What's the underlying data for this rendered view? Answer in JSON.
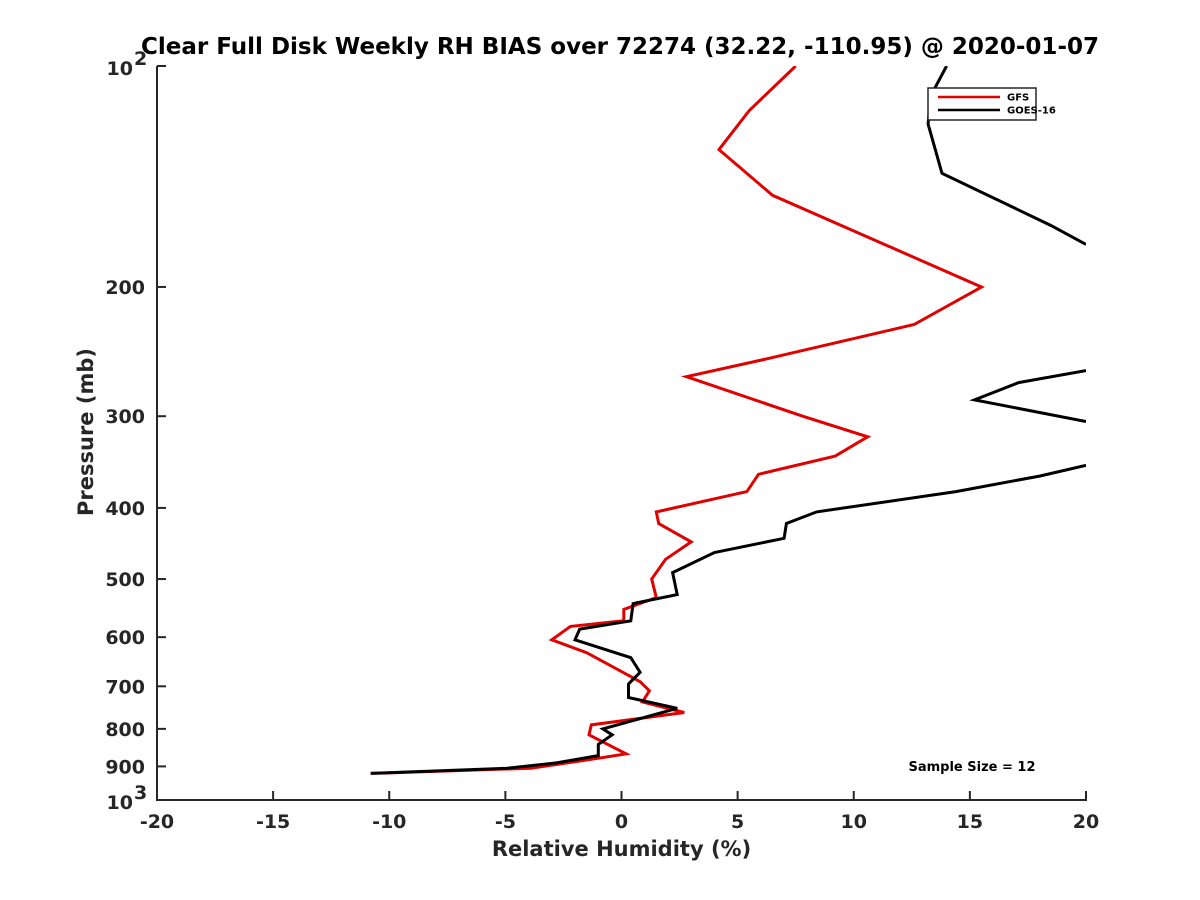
{
  "chart_data": {
    "type": "line",
    "title": "Clear Full Disk Weekly RH BIAS over 72274 (32.22, -110.95) @ 2020-01-07",
    "xlabel": "Relative Humidity (%)",
    "ylabel": "Pressure (mb)",
    "xlim": [
      -20,
      20
    ],
    "ylim": [
      100,
      1000
    ],
    "yscale": "log",
    "y_reversed": true,
    "grid": false,
    "legend_position": "top-right",
    "annotation": "Sample Size = 12",
    "x_ticks": [
      {
        "value": -20,
        "label": "-20"
      },
      {
        "value": -15,
        "label": "-15"
      },
      {
        "value": -10,
        "label": "-10"
      },
      {
        "value": -5,
        "label": "-5"
      },
      {
        "value": 0,
        "label": "0"
      },
      {
        "value": 5,
        "label": "5"
      },
      {
        "value": 10,
        "label": "10"
      },
      {
        "value": 15,
        "label": "15"
      },
      {
        "value": 20,
        "label": "20"
      }
    ],
    "y_ticks": [
      {
        "value": 100,
        "label": "10",
        "exp": "2"
      },
      {
        "value": 200,
        "label": "200",
        "exp": ""
      },
      {
        "value": 300,
        "label": "300",
        "exp": ""
      },
      {
        "value": 400,
        "label": "400",
        "exp": ""
      },
      {
        "value": 500,
        "label": "500",
        "exp": ""
      },
      {
        "value": 600,
        "label": "600",
        "exp": ""
      },
      {
        "value": 700,
        "label": "700",
        "exp": ""
      },
      {
        "value": 800,
        "label": "800",
        "exp": ""
      },
      {
        "value": 900,
        "label": "900",
        "exp": ""
      },
      {
        "value": 1000,
        "label": "10",
        "exp": "3"
      }
    ],
    "series": [
      {
        "name": "GFS",
        "color": "#e00000",
        "points": [
          {
            "p": 100,
            "rh": 7.5
          },
          {
            "p": 115,
            "rh": 5.5
          },
          {
            "p": 130,
            "rh": 4.2
          },
          {
            "p": 150,
            "rh": 6.5
          },
          {
            "p": 200,
            "rh": 15.5
          },
          {
            "p": 225,
            "rh": 12.6
          },
          {
            "p": 250,
            "rh": 6.4
          },
          {
            "p": 265,
            "rh": 2.8
          },
          {
            "p": 300,
            "rh": 7.8
          },
          {
            "p": 320,
            "rh": 10.6
          },
          {
            "p": 340,
            "rh": 9.2
          },
          {
            "p": 360,
            "rh": 5.9
          },
          {
            "p": 380,
            "rh": 5.4
          },
          {
            "p": 405,
            "rh": 1.5
          },
          {
            "p": 420,
            "rh": 1.6
          },
          {
            "p": 445,
            "rh": 3.0
          },
          {
            "p": 470,
            "rh": 1.9
          },
          {
            "p": 500,
            "rh": 1.3
          },
          {
            "p": 530,
            "rh": 1.5
          },
          {
            "p": 550,
            "rh": 0.1
          },
          {
            "p": 570,
            "rh": 0.1
          },
          {
            "p": 580,
            "rh": -2.2
          },
          {
            "p": 605,
            "rh": -3.0
          },
          {
            "p": 630,
            "rh": -1.5
          },
          {
            "p": 690,
            "rh": 0.8
          },
          {
            "p": 710,
            "rh": 1.2
          },
          {
            "p": 735,
            "rh": 0.9
          },
          {
            "p": 760,
            "rh": 2.7
          },
          {
            "p": 790,
            "rh": -1.3
          },
          {
            "p": 815,
            "rh": -1.4
          },
          {
            "p": 865,
            "rh": 0.2
          },
          {
            "p": 880,
            "rh": -1.3
          },
          {
            "p": 905,
            "rh": -3.9
          },
          {
            "p": 920,
            "rh": -10.8
          }
        ]
      },
      {
        "name": "GOES-16",
        "color": "#000000",
        "segments": [
          [
            {
              "p": 100,
              "rh": 14.0
            },
            {
              "p": 110,
              "rh": 13.3
            },
            {
              "p": 120,
              "rh": 13.2
            },
            {
              "p": 140,
              "rh": 13.8
            },
            {
              "p": 165,
              "rh": 18.5
            },
            {
              "p": 175,
              "rh": 20.0
            }
          ],
          [
            {
              "p": 260,
              "rh": 20.0
            },
            {
              "p": 270,
              "rh": 17.1
            },
            {
              "p": 285,
              "rh": 15.2
            },
            {
              "p": 305,
              "rh": 20.0
            }
          ],
          [
            {
              "p": 350,
              "rh": 20.0
            },
            {
              "p": 362,
              "rh": 18.0
            },
            {
              "p": 380,
              "rh": 14.4
            },
            {
              "p": 405,
              "rh": 8.4
            },
            {
              "p": 420,
              "rh": 7.1
            },
            {
              "p": 440,
              "rh": 7.0
            },
            {
              "p": 460,
              "rh": 4.0
            },
            {
              "p": 490,
              "rh": 2.2
            },
            {
              "p": 525,
              "rh": 2.4
            },
            {
              "p": 540,
              "rh": 0.5
            },
            {
              "p": 570,
              "rh": 0.4
            },
            {
              "p": 585,
              "rh": -1.8
            },
            {
              "p": 605,
              "rh": -2.0
            },
            {
              "p": 640,
              "rh": 0.4
            },
            {
              "p": 670,
              "rh": 0.8
            },
            {
              "p": 695,
              "rh": 0.3
            },
            {
              "p": 725,
              "rh": 0.3
            },
            {
              "p": 750,
              "rh": 2.4
            },
            {
              "p": 770,
              "rh": 1.1
            },
            {
              "p": 800,
              "rh": -0.8
            },
            {
              "p": 815,
              "rh": -0.4
            },
            {
              "p": 840,
              "rh": -1.0
            },
            {
              "p": 870,
              "rh": -1.0
            },
            {
              "p": 890,
              "rh": -2.8
            },
            {
              "p": 905,
              "rh": -4.9
            },
            {
              "p": 920,
              "rh": -10.8
            }
          ]
        ]
      }
    ]
  }
}
